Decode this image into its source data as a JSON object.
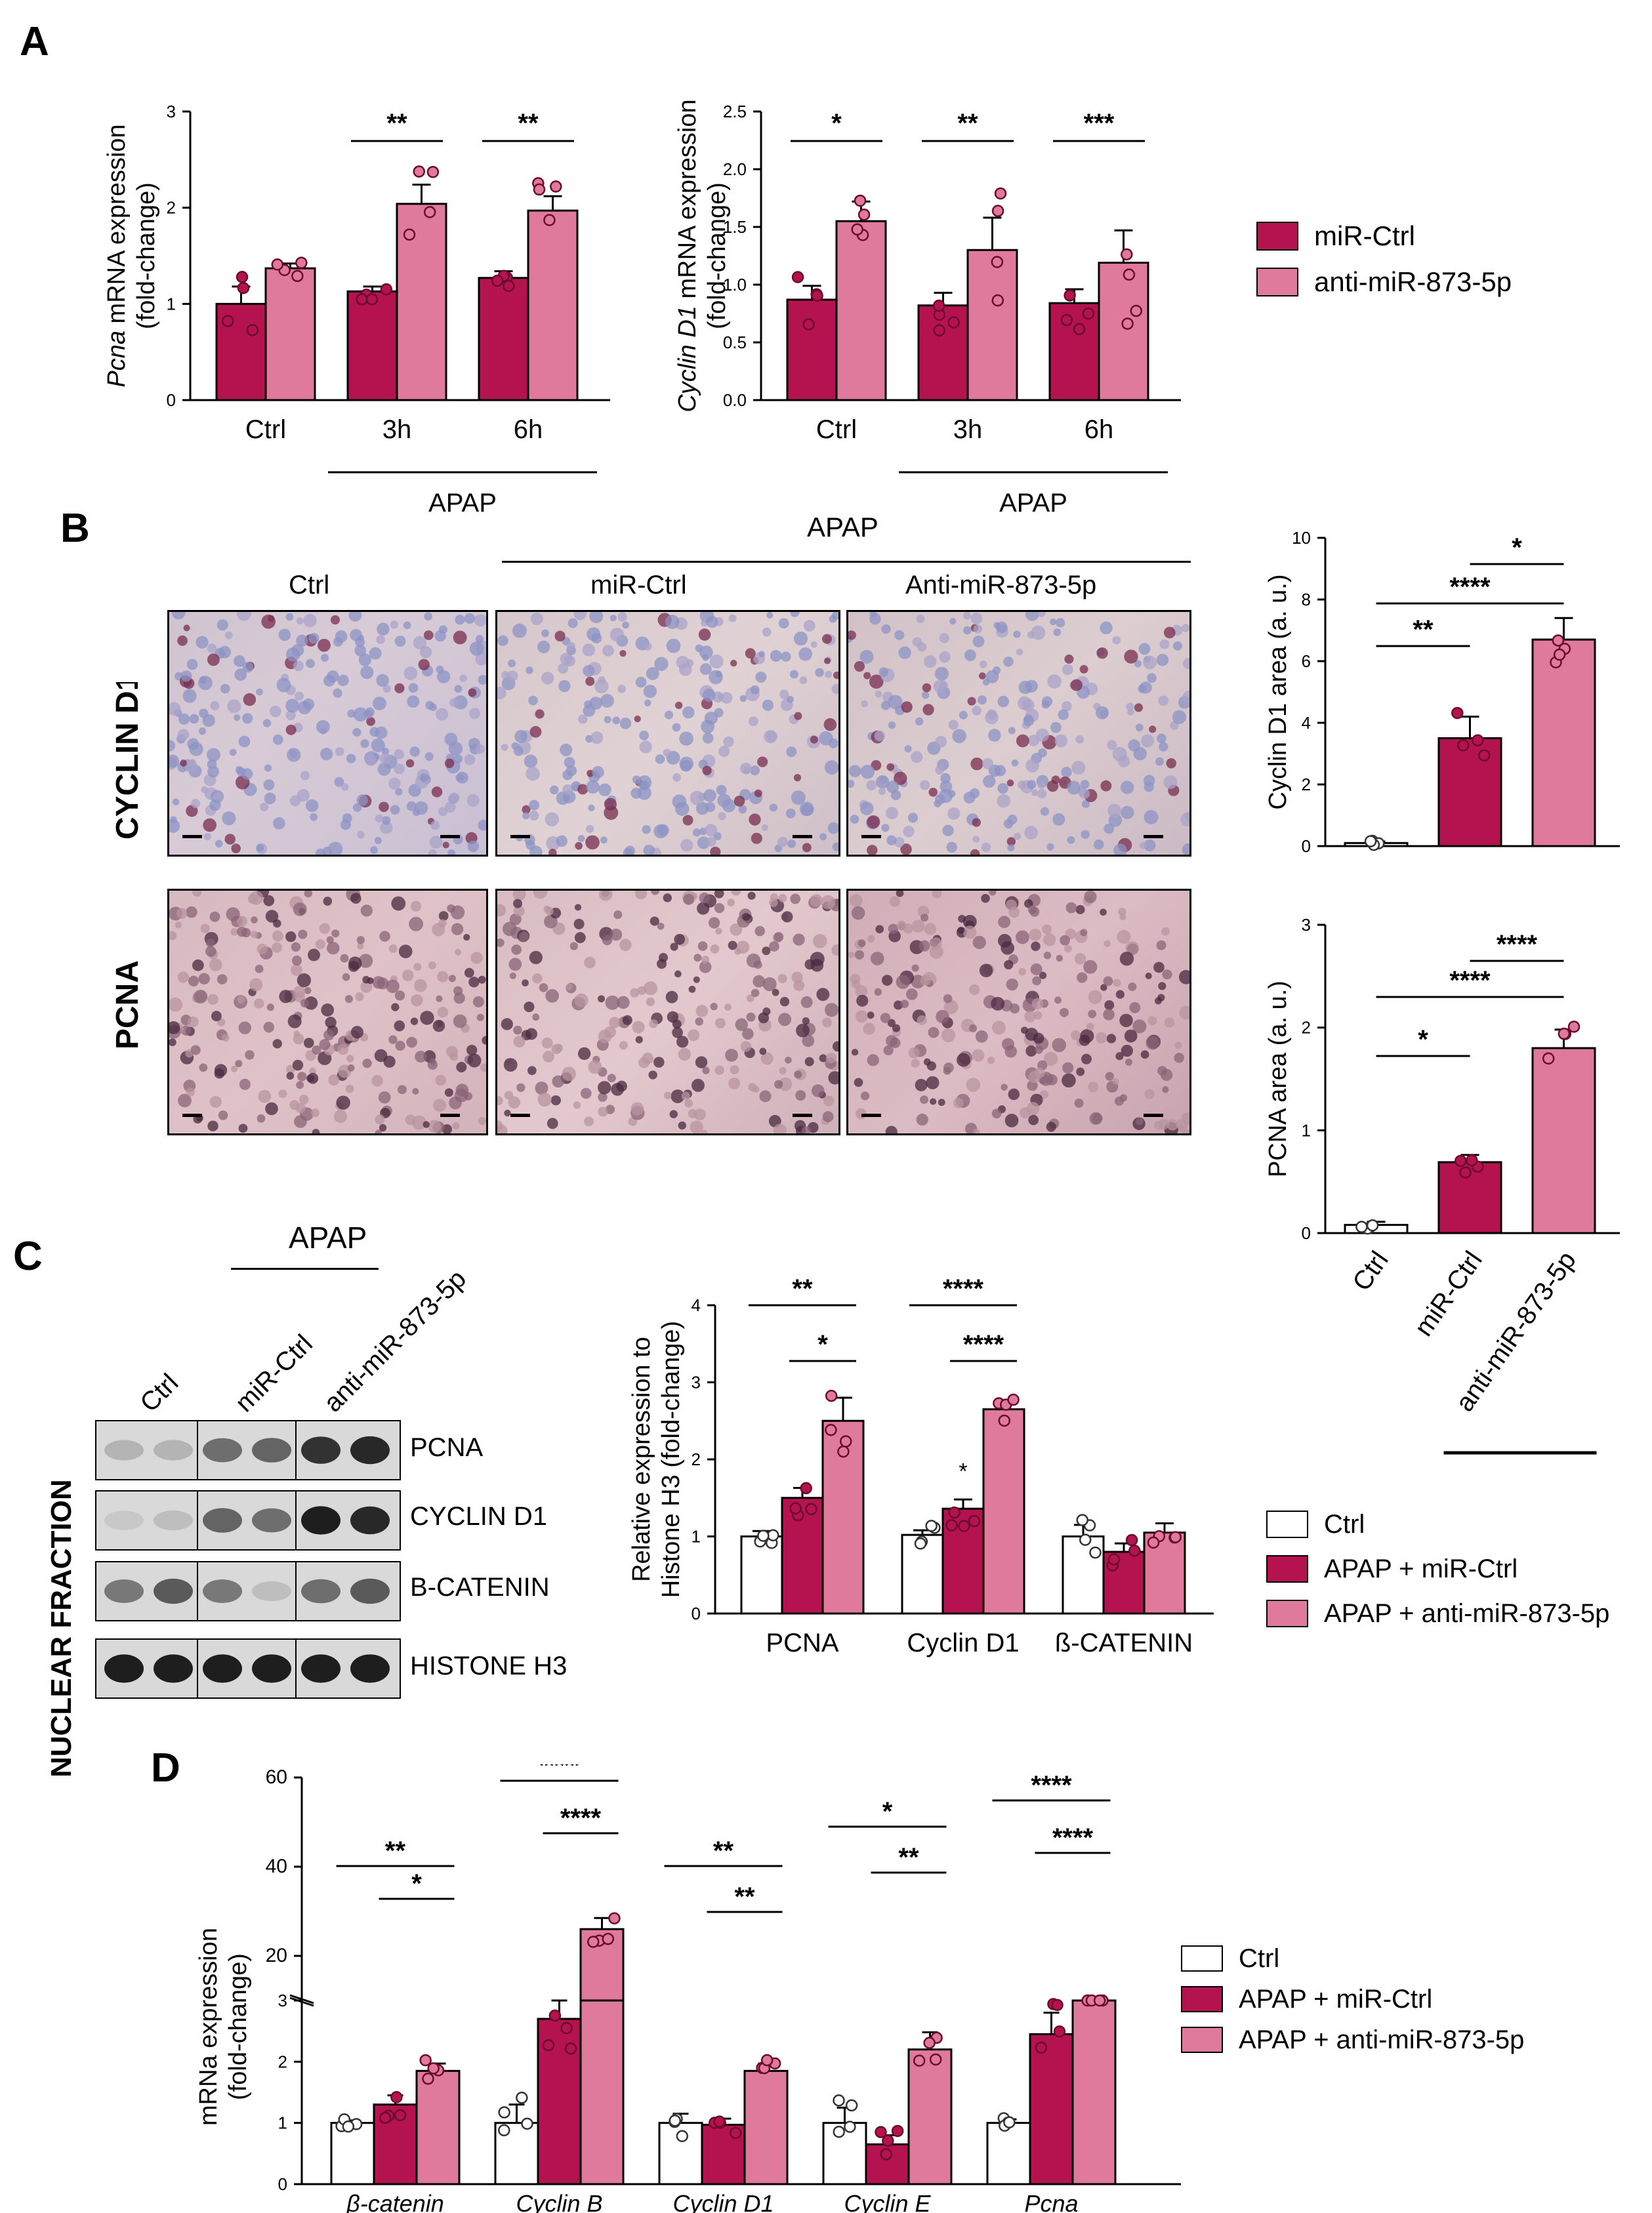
{
  "colors": {
    "ctrl": "#ffffff",
    "mirctrl": "#b5134f",
    "anti": "#e07a9c",
    "point": "#ffffff",
    "axis": "#000000"
  },
  "panel_letters": {
    "a": "A",
    "b": "B",
    "c": "C",
    "d": "D"
  },
  "legend_a": {
    "items": [
      "miR-Ctrl",
      "anti-miR-873-5p"
    ]
  },
  "panel_b": {
    "apap_label": "APAP",
    "col_labels": [
      "Ctrl",
      "miR-Ctrl",
      "Anti-miR-873-5p"
    ],
    "row_labels": [
      "CYCLIN D1",
      "PCNA"
    ],
    "x_labels": [
      "Ctrl",
      "miR-Ctrl",
      "anti-miR-873-5p"
    ],
    "x_apap": "APAP"
  },
  "panel_c": {
    "apap_label": "APAP",
    "lane_labels": [
      "Ctrl",
      "miR-Ctrl",
      "anti-miR-873-5p"
    ],
    "side_label": "NUCLEAR FRACTION",
    "band_labels": [
      "PCNA",
      "CYCLIN D1",
      "B-CATENIN",
      "HISTONE H3"
    ]
  },
  "legend_cd": {
    "items": [
      "Ctrl",
      "APAP + miR-Ctrl",
      "APAP + anti-miR-873-5p"
    ]
  },
  "chart_data": [
    {
      "id": "a1",
      "type": "bar",
      "ylabel_italic": "Pcna",
      "ylabel_rest": " mRNA expression",
      "ylabel2": "(fold-change)",
      "ylim": [
        0,
        3
      ],
      "yticks": [
        "0",
        "1",
        "2",
        "3"
      ],
      "categories": [
        "Ctrl",
        "3h",
        "6h"
      ],
      "group_label": "APAP",
      "series": [
        {
          "name": "miR-Ctrl",
          "values": [
            1.0,
            1.13,
            1.27
          ],
          "errors": [
            0.18,
            0.05,
            0.07
          ]
        },
        {
          "name": "anti-miR-873-5p",
          "values": [
            1.37,
            2.04,
            1.97
          ],
          "errors": [
            0.05,
            0.2,
            0.15
          ]
        }
      ],
      "significance": [
        {
          "label": "**",
          "category": "3h"
        },
        {
          "label": "**",
          "category": "6h"
        }
      ]
    },
    {
      "id": "a2",
      "type": "bar",
      "ylabel_italic": "Cyclin D1",
      "ylabel_rest": " mRNA expression",
      "ylabel2": "(fold-change)",
      "ylim": [
        0,
        2.5
      ],
      "yticks": [
        "0.0",
        "0.5",
        "1.0",
        "1.5",
        "2.0",
        "2.5"
      ],
      "categories": [
        "Ctrl",
        "3h",
        "6h"
      ],
      "group_label": "APAP",
      "series": [
        {
          "name": "miR-Ctrl",
          "values": [
            0.87,
            0.82,
            0.84
          ],
          "errors": [
            0.12,
            0.11,
            0.12
          ]
        },
        {
          "name": "anti-miR-873-5p",
          "values": [
            1.55,
            1.3,
            1.19
          ],
          "errors": [
            0.17,
            0.28,
            0.28
          ]
        }
      ],
      "significance": [
        {
          "label": "*",
          "category": "Ctrl"
        },
        {
          "label": "**",
          "category": "3h"
        },
        {
          "label": "***",
          "category": "6h"
        }
      ]
    },
    {
      "id": "b1",
      "type": "bar",
      "ylabel": "Cyclin D1 area (a. u.)",
      "ylim": [
        0,
        10
      ],
      "yticks": [
        "0",
        "2",
        "4",
        "6",
        "8",
        "10"
      ],
      "categories": [
        "Ctrl",
        "miR-Ctrl",
        "anti-miR-873-5p"
      ],
      "values": [
        0.1,
        3.5,
        6.7
      ],
      "errors": [
        0.05,
        0.7,
        0.7
      ],
      "significance": [
        {
          "label": "*",
          "from": 1,
          "to": 2
        },
        {
          "label": "****",
          "from": 0,
          "to": 2
        },
        {
          "label": "**",
          "from": 0,
          "to": 1
        }
      ]
    },
    {
      "id": "b2",
      "type": "bar",
      "ylabel": "PCNA area (a. u.)",
      "ylim": [
        0,
        3
      ],
      "yticks": [
        "0",
        "1",
        "2",
        "3"
      ],
      "categories": [
        "Ctrl",
        "miR-Ctrl",
        "anti-miR-873-5p"
      ],
      "values": [
        0.08,
        0.69,
        1.8
      ],
      "errors": [
        0.03,
        0.07,
        0.18
      ],
      "significance": [
        {
          "label": "****",
          "from": 1,
          "to": 2
        },
        {
          "label": "****",
          "from": 0,
          "to": 2
        },
        {
          "label": "*",
          "from": 0,
          "to": 1
        }
      ]
    },
    {
      "id": "c",
      "type": "bar",
      "ylabel": "Relative expression to",
      "ylabel2": "Histone H3 (fold-change)",
      "ylim": [
        0,
        4
      ],
      "yticks": [
        "0",
        "1",
        "2",
        "3",
        "4"
      ],
      "categories": [
        "PCNA",
        "Cyclin D1",
        "ß-CATENIN"
      ],
      "series": [
        {
          "name": "Ctrl",
          "values": [
            1.0,
            1.02,
            1.0
          ],
          "errors": [
            0.07,
            0.06,
            0.15
          ]
        },
        {
          "name": "APAP + miR-Ctrl",
          "values": [
            1.5,
            1.36,
            0.8
          ],
          "errors": [
            0.13,
            0.12,
            0.11
          ]
        },
        {
          "name": "APAP + anti-miR-873-5p",
          "values": [
            2.5,
            2.65,
            1.05
          ],
          "errors": [
            0.3,
            0.12,
            0.12
          ]
        }
      ],
      "significance": [
        {
          "label": "**",
          "category": "PCNA",
          "from": 0,
          "to": 2
        },
        {
          "label": "*",
          "category": "PCNA",
          "from": 1,
          "to": 2
        },
        {
          "label": "****",
          "category": "Cyclin D1",
          "from": 0,
          "to": 2
        },
        {
          "label": "****",
          "category": "Cyclin D1",
          "from": 1,
          "to": 2
        }
      ],
      "bar_annotation": {
        "label": "*",
        "category": "Cyclin D1",
        "series": 1
      }
    },
    {
      "id": "d",
      "type": "bar",
      "ylabel": "mRNa expression",
      "ylabel2": "(fold-change)",
      "ylim": [
        0,
        60
      ],
      "broken_axis": [
        3,
        10
      ],
      "yticks_low": [
        "0",
        "1",
        "2",
        "3"
      ],
      "yticks_high": [
        "20",
        "40",
        "60"
      ],
      "categories": [
        "β-catenin",
        "Cyclin B",
        "Cyclin D1",
        "Cyclin E",
        "Pcna"
      ],
      "series": [
        {
          "name": "Ctrl",
          "values": [
            1.0,
            1.0,
            1.0,
            1.0,
            1.0
          ],
          "errors": [
            0.04,
            0.3,
            0.15,
            0.25,
            0.06
          ]
        },
        {
          "name": "APAP + miR-Ctrl",
          "values": [
            1.3,
            2.7,
            0.97,
            0.65,
            2.45
          ],
          "errors": [
            0.15,
            0.4,
            0.1,
            0.15,
            0.35
          ]
        },
        {
          "name": "APAP + anti-miR-873-5p",
          "values": [
            1.85,
            26,
            1.85,
            2.2,
            8
          ],
          "errors": [
            0.12,
            2.5,
            0.12,
            0.28,
            0.5
          ]
        }
      ],
      "significance": [
        {
          "label": "**",
          "category": "β-catenin",
          "from": 0,
          "to": 2
        },
        {
          "label": "*",
          "category": "β-catenin",
          "from": 1,
          "to": 2
        },
        {
          "label": "****",
          "category": "Cyclin B",
          "from": 0,
          "to": 2
        },
        {
          "label": "****",
          "category": "Cyclin B",
          "from": 1,
          "to": 2
        },
        {
          "label": "**",
          "category": "Cyclin D1",
          "from": 0,
          "to": 2
        },
        {
          "label": "**",
          "category": "Cyclin D1",
          "from": 1,
          "to": 2
        },
        {
          "label": "*",
          "category": "Cyclin E",
          "from": 0,
          "to": 2
        },
        {
          "label": "**",
          "category": "Cyclin E",
          "from": 1,
          "to": 2
        },
        {
          "label": "****",
          "category": "Pcna",
          "from": 0,
          "to": 2
        },
        {
          "label": "****",
          "category": "Pcna",
          "from": 1,
          "to": 2
        }
      ]
    }
  ]
}
